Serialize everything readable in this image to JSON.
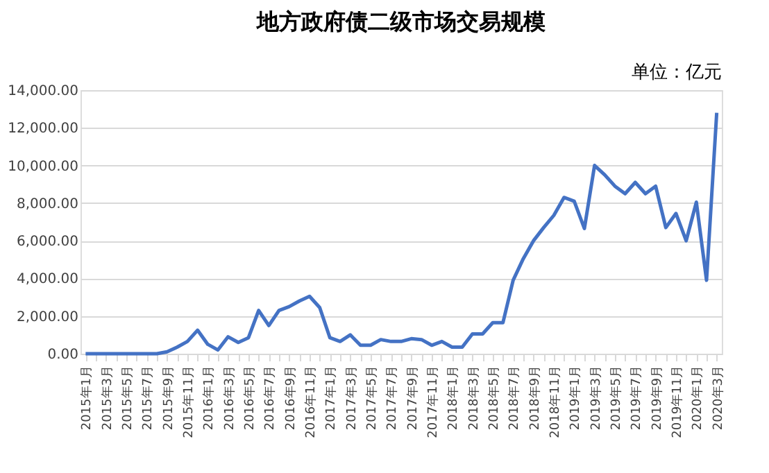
{
  "chart_data": {
    "type": "line",
    "title": "地方政府债二级市场交易规模",
    "annotations": [
      "单位：亿元"
    ],
    "categories": [
      "2015年1月",
      null,
      "2015年3月",
      null,
      "2015年5月",
      null,
      "2015年7月",
      null,
      "2015年9月",
      null,
      "2015年11月",
      null,
      "2016年1月",
      null,
      "2016年3月",
      null,
      "2016年5月",
      null,
      "2016年7月",
      null,
      "2016年9月",
      null,
      "2016年11月",
      null,
      "2017年1月",
      null,
      "2017年3月",
      null,
      "2017年5月",
      null,
      "2017年7月",
      null,
      "2017年9月",
      null,
      "2017年11月",
      null,
      "2018年1月",
      null,
      "2018年3月",
      null,
      "2018年5月",
      null,
      "2018年7月",
      null,
      "2018年9月",
      null,
      "2018年11月",
      null,
      "2019年1月",
      null,
      "2019年3月",
      null,
      "2019年5月",
      null,
      "2019年7月",
      null,
      "2019年9月",
      null,
      "2019年11月",
      null,
      "2020年1月",
      null,
      "2020年3月"
    ],
    "series": [
      {
        "color": "#4472c4",
        "values": [
          0,
          0,
          0,
          0,
          0,
          0,
          0,
          0,
          100,
          350,
          650,
          1250,
          500,
          200,
          900,
          600,
          850,
          2300,
          1500,
          2300,
          2500,
          2800,
          3050,
          2450,
          850,
          650,
          1000,
          450,
          450,
          750,
          650,
          650,
          800,
          750,
          450,
          650,
          350,
          350,
          1050,
          1050,
          1650,
          1650,
          3900,
          5050,
          6000,
          6700,
          7350,
          8300,
          8100,
          6650,
          10000,
          9500,
          8900,
          8500,
          9100,
          8500,
          8900,
          6700,
          7450,
          6000,
          8050,
          3900,
          12800
        ]
      }
    ],
    "ylim": [
      0,
      14000
    ],
    "yticks": [
      {
        "value": 0,
        "label": "0.00"
      },
      {
        "value": 2000,
        "label": "2,000.00"
      },
      {
        "value": 4000,
        "label": "4,000.00"
      },
      {
        "value": 6000,
        "label": "6,000.00"
      },
      {
        "value": 8000,
        "label": "8,000.00"
      },
      {
        "value": 10000,
        "label": "10,000.00"
      },
      {
        "value": 12000,
        "label": "12,000.00"
      },
      {
        "value": 14000,
        "label": "14,000.00"
      }
    ],
    "grid": "y",
    "marker": "none",
    "line_style": "solid"
  }
}
